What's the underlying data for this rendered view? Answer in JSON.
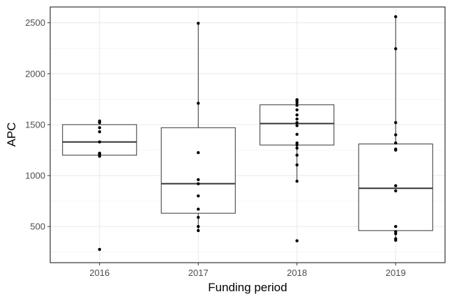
{
  "chart_data": {
    "type": "boxplot",
    "xlabel": "Funding period",
    "ylabel": "APC",
    "categories": [
      "2016",
      "2017",
      "2018",
      "2019"
    ],
    "ylim": [
      145,
      2655
    ],
    "yticks": [
      500,
      1000,
      1500,
      2000,
      2500
    ],
    "grid": true,
    "boxes": [
      {
        "category": "2016",
        "q1": 1200,
        "median": 1330,
        "q3": 1500,
        "whisker_low": 1200,
        "whisker_high": 1535
      },
      {
        "category": "2017",
        "q1": 630,
        "median": 920,
        "q3": 1470,
        "whisker_low": 460,
        "whisker_high": 2495
      },
      {
        "category": "2018",
        "q1": 1300,
        "median": 1510,
        "q3": 1695,
        "whisker_low": 940,
        "whisker_high": 1745
      },
      {
        "category": "2019",
        "q1": 460,
        "median": 875,
        "q3": 1310,
        "whisker_low": 365,
        "whisker_high": 2560
      }
    ],
    "points": [
      {
        "category": "2016",
        "values": [
          1535,
          1520,
          1470,
          1430,
          1330,
          1220,
          1210,
          1190,
          275
        ]
      },
      {
        "category": "2017",
        "values": [
          2495,
          1710,
          1225,
          960,
          920,
          800,
          670,
          590,
          500,
          460
        ]
      },
      {
        "category": "2018",
        "values": [
          1745,
          1735,
          1715,
          1690,
          1645,
          1595,
          1555,
          1520,
          1490,
          1405,
          1320,
          1300,
          1270,
          1200,
          1105,
          945,
          360
        ]
      },
      {
        "category": "2019",
        "values": [
          2560,
          2245,
          1520,
          1400,
          1320,
          1260,
          1250,
          900,
          850,
          500,
          450,
          430,
          380,
          365
        ]
      }
    ]
  }
}
